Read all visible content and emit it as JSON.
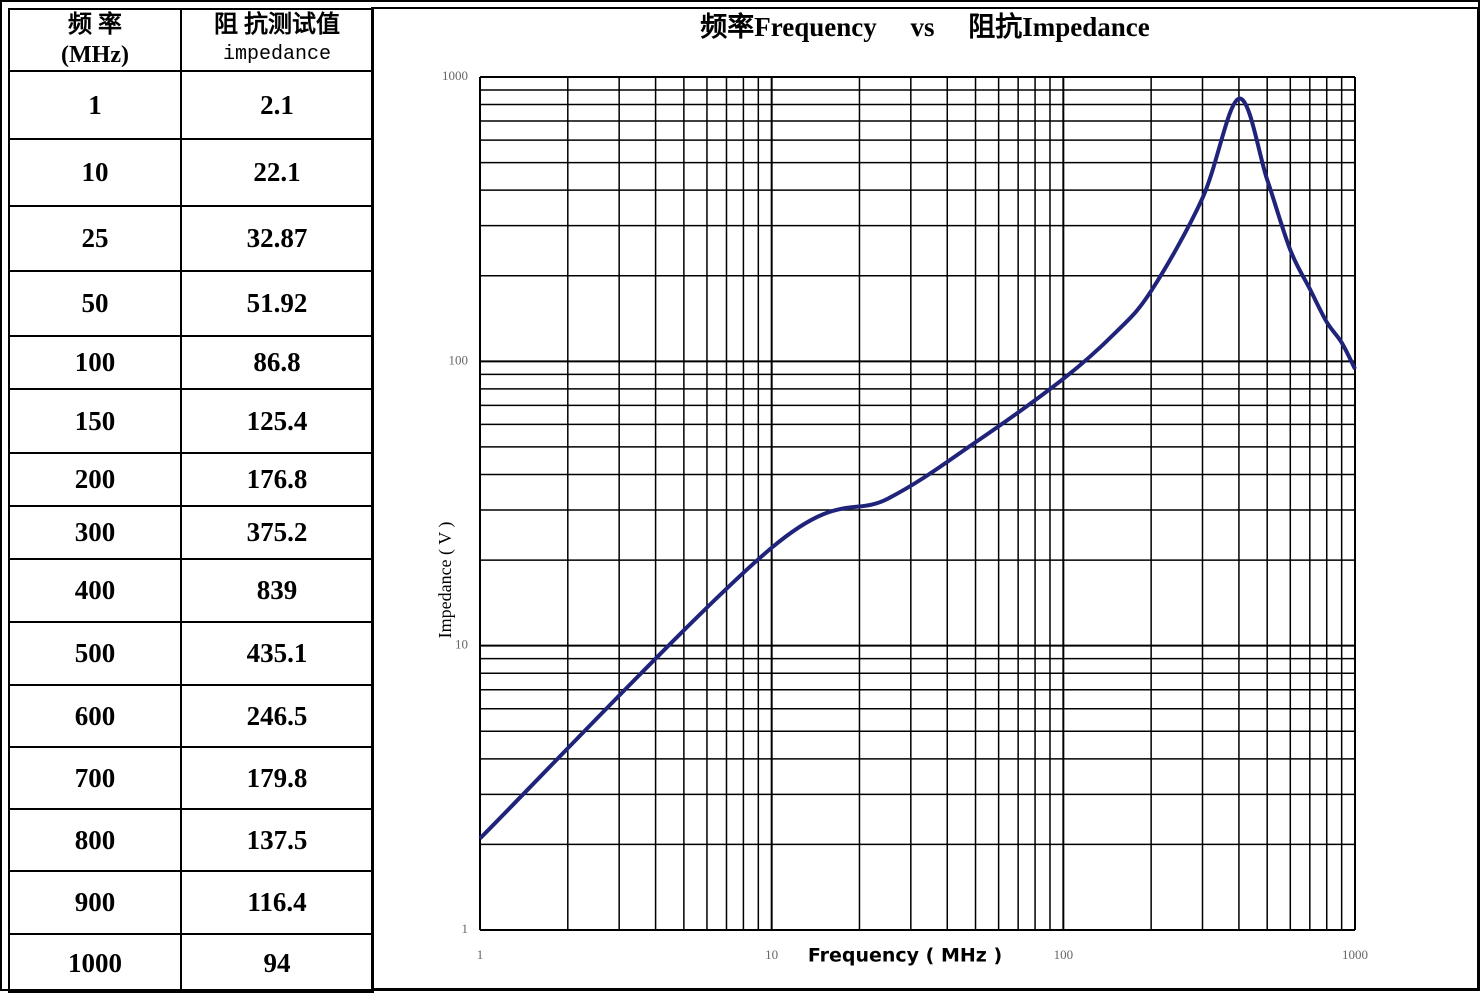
{
  "table": {
    "headers": [
      [
        "频 率",
        "(MHz)"
      ],
      [
        "阻 抗测试值",
        "impedance"
      ]
    ],
    "rows": [
      [
        "1",
        "2.1"
      ],
      [
        "10",
        "22.1"
      ],
      [
        "25",
        "32.87"
      ],
      [
        "50",
        "51.92"
      ],
      [
        "100",
        "86.8"
      ],
      [
        "150",
        "125.4"
      ],
      [
        "200",
        "176.8"
      ],
      [
        "300",
        "375.2"
      ],
      [
        "400",
        "839"
      ],
      [
        "500",
        "435.1"
      ],
      [
        "600",
        "246.5"
      ],
      [
        "700",
        "179.8"
      ],
      [
        "800",
        "137.5"
      ],
      [
        "900",
        "116.4"
      ],
      [
        "1000",
        "94"
      ]
    ]
  },
  "chart_data": {
    "type": "line",
    "title": "频率Frequency     vs     阻抗Impedance",
    "x_label": "Frequency ( MHz )",
    "y_label": "Impedance ( V )",
    "x": [
      1,
      10,
      25,
      50,
      100,
      150,
      200,
      300,
      400,
      500,
      600,
      700,
      800,
      900,
      1000
    ],
    "values": [
      2.1,
      22.1,
      32.87,
      51.92,
      86.8,
      125.4,
      176.8,
      375.2,
      839,
      435.1,
      246.5,
      179.8,
      137.5,
      116.4,
      94
    ],
    "color": "#1f237a",
    "log_x": true,
    "log_y": true,
    "grid": true,
    "xlim": [
      1,
      1000
    ],
    "ylim": [
      1,
      1000
    ],
    "xticks": [
      1,
      10,
      100,
      1000
    ],
    "yticks": [
      1,
      10,
      100,
      1000
    ]
  }
}
